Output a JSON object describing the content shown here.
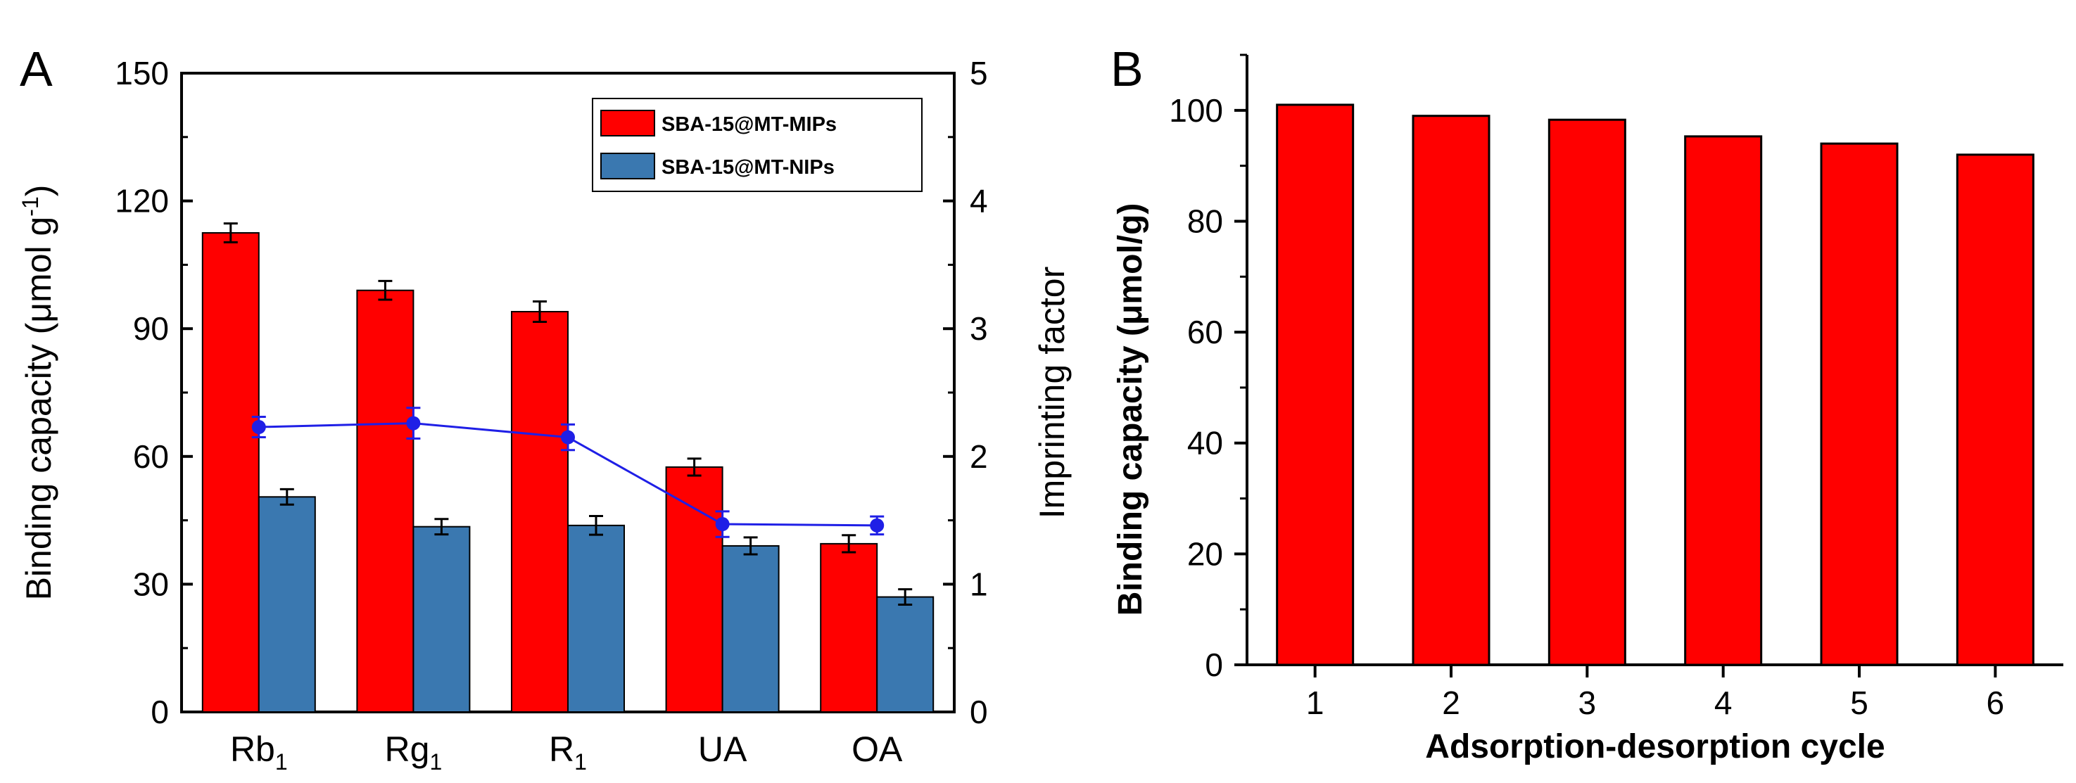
{
  "chart_data": [
    {
      "panel": "A",
      "type": "bar",
      "categories": [
        "Rb",
        "Rg",
        "R",
        "UA",
        "OA"
      ],
      "category_subscripts": [
        "1",
        "1",
        "1",
        "",
        ""
      ],
      "series": [
        {
          "name": "SBA-15@MT-MIPs",
          "color": "#ff0000",
          "values": [
            112.5,
            99,
            94,
            57.5,
            39.5
          ],
          "errors": [
            2.2,
            2.2,
            2.4,
            2.0,
            2.0
          ]
        },
        {
          "name": "SBA-15@MT-NIPs",
          "color": "#3a78b0",
          "values": [
            50.5,
            43.5,
            43.8,
            39,
            27
          ],
          "errors": [
            1.8,
            1.8,
            2.2,
            2.0,
            1.8
          ]
        }
      ],
      "line_series": {
        "name": "Imprinting factor",
        "color": "#1f1fe6",
        "values": [
          2.23,
          2.26,
          2.15,
          1.47,
          1.46
        ],
        "errors": [
          0.08,
          0.12,
          0.1,
          0.1,
          0.07
        ]
      },
      "ylabel_left_main": "Binding capacity (μmol g",
      "ylabel_left_sup": "-1",
      "ylabel_left_end": ")",
      "ylabel_right": "Imprinting factor",
      "ylim_left": [
        0,
        150
      ],
      "yticks_left": [
        "0",
        "30",
        "60",
        "90",
        "120",
        "150"
      ],
      "ylim_right": [
        0,
        5
      ],
      "yticks_right": [
        "0",
        "1",
        "2",
        "3",
        "4",
        "5"
      ],
      "legend_position": "top-right",
      "grid": false
    },
    {
      "panel": "B",
      "type": "bar",
      "categories": [
        "1",
        "2",
        "3",
        "4",
        "5",
        "6"
      ],
      "values": [
        101,
        99,
        98.3,
        95.3,
        94,
        92
      ],
      "color": "#ff0000",
      "xlabel": "Adsorption-desorption cycle",
      "ylabel": "Binding capacity (μmol/g)",
      "ylim": [
        0,
        110
      ],
      "yticks": [
        "0",
        "20",
        "40",
        "60",
        "80",
        "100"
      ],
      "grid": false
    }
  ]
}
